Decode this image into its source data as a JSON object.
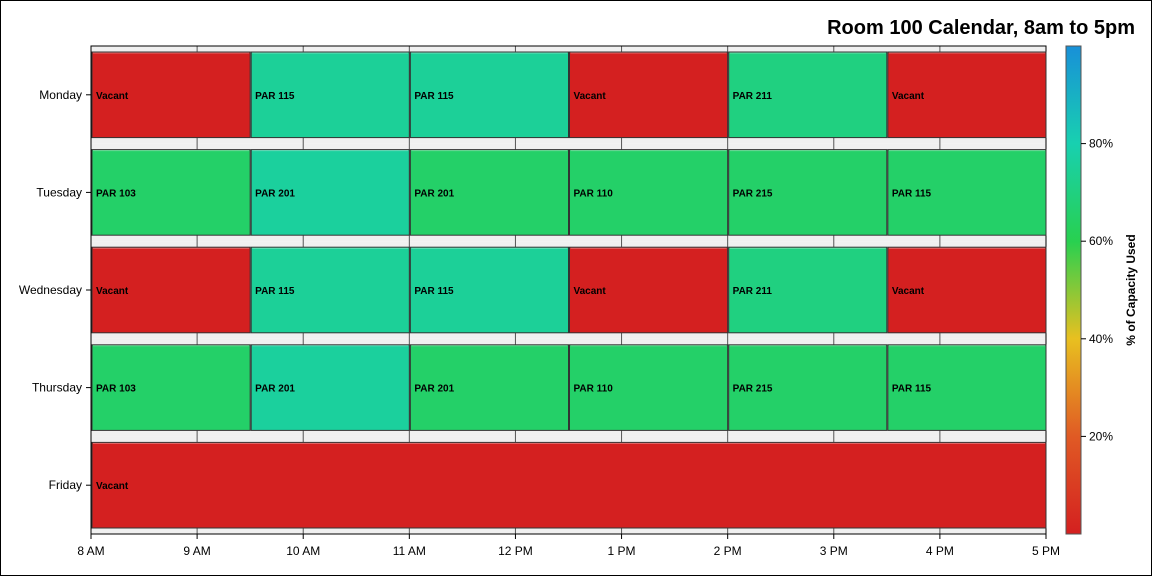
{
  "chart_data": {
    "type": "gantt",
    "title": "Room 100 Calendar, 8am to 5pm",
    "x_ticks": [
      "8 AM",
      "9 AM",
      "10 AM",
      "11 AM",
      "12 PM",
      "1 PM",
      "2 PM",
      "3 PM",
      "4 PM",
      "5 PM"
    ],
    "xlim": [
      8,
      17
    ],
    "categories": [
      "Monday",
      "Tuesday",
      "Wednesday",
      "Thursday",
      "Friday"
    ],
    "colorbar": {
      "label": "% of Capacity Used",
      "range": [
        0,
        100
      ],
      "ticks": [
        "20%",
        "40%",
        "60%",
        "80%"
      ],
      "colors": [
        "#d42020",
        "#e07028",
        "#e8c020",
        "#28d050",
        "#18c8d8",
        "#1890d8"
      ]
    },
    "rows": [
      {
        "day": "Monday",
        "events": [
          {
            "start": 8.0,
            "end": 9.5,
            "label": "Vacant",
            "capacity": 0
          },
          {
            "start": 9.5,
            "end": 11.0,
            "label": "PAR 115",
            "capacity": 75
          },
          {
            "start": 11.0,
            "end": 12.5,
            "label": "PAR 115",
            "capacity": 75
          },
          {
            "start": 12.5,
            "end": 14.0,
            "label": "Vacant",
            "capacity": 0
          },
          {
            "start": 14.0,
            "end": 15.5,
            "label": "PAR 211",
            "capacity": 70
          },
          {
            "start": 15.5,
            "end": 17.0,
            "label": "Vacant",
            "capacity": 0
          }
        ]
      },
      {
        "day": "Tuesday",
        "events": [
          {
            "start": 8.0,
            "end": 9.5,
            "label": "PAR 103",
            "capacity": 65
          },
          {
            "start": 9.5,
            "end": 11.0,
            "label": "PAR 201",
            "capacity": 76
          },
          {
            "start": 11.0,
            "end": 12.5,
            "label": "PAR 201",
            "capacity": 65
          },
          {
            "start": 12.5,
            "end": 14.0,
            "label": "PAR 110",
            "capacity": 65
          },
          {
            "start": 14.0,
            "end": 15.5,
            "label": "PAR 215",
            "capacity": 65
          },
          {
            "start": 15.5,
            "end": 17.0,
            "label": "PAR 115",
            "capacity": 65
          }
        ]
      },
      {
        "day": "Wednesday",
        "events": [
          {
            "start": 8.0,
            "end": 9.5,
            "label": "Vacant",
            "capacity": 0
          },
          {
            "start": 9.5,
            "end": 11.0,
            "label": "PAR 115",
            "capacity": 75
          },
          {
            "start": 11.0,
            "end": 12.5,
            "label": "PAR 115",
            "capacity": 75
          },
          {
            "start": 12.5,
            "end": 14.0,
            "label": "Vacant",
            "capacity": 0
          },
          {
            "start": 14.0,
            "end": 15.5,
            "label": "PAR 211",
            "capacity": 70
          },
          {
            "start": 15.5,
            "end": 17.0,
            "label": "Vacant",
            "capacity": 0
          }
        ]
      },
      {
        "day": "Thursday",
        "events": [
          {
            "start": 8.0,
            "end": 9.5,
            "label": "PAR 103",
            "capacity": 65
          },
          {
            "start": 9.5,
            "end": 11.0,
            "label": "PAR 201",
            "capacity": 76
          },
          {
            "start": 11.0,
            "end": 12.5,
            "label": "PAR 201",
            "capacity": 65
          },
          {
            "start": 12.5,
            "end": 14.0,
            "label": "PAR 110",
            "capacity": 65
          },
          {
            "start": 14.0,
            "end": 15.5,
            "label": "PAR 215",
            "capacity": 65
          },
          {
            "start": 15.5,
            "end": 17.0,
            "label": "PAR 115",
            "capacity": 65
          }
        ]
      },
      {
        "day": "Friday",
        "events": [
          {
            "start": 8.0,
            "end": 17.0,
            "label": "Vacant",
            "capacity": 0
          }
        ]
      }
    ]
  }
}
